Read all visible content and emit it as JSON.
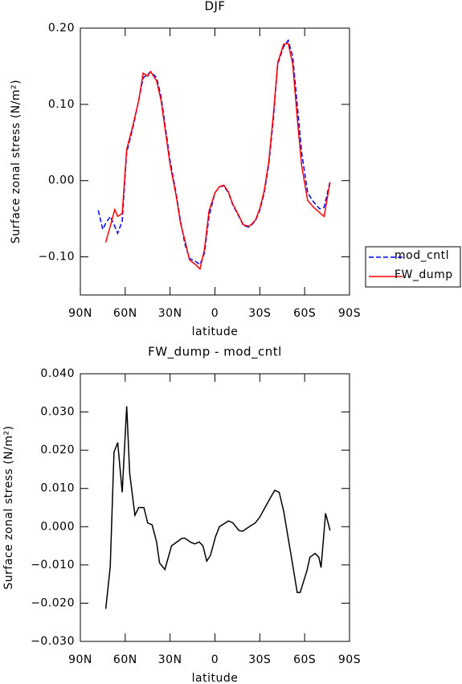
{
  "chart_data": [
    {
      "type": "line",
      "title": "DJF",
      "xlabel": "latitude",
      "ylabel": "Surface zonal stress (N/m²)",
      "x": [
        78,
        75,
        73,
        70,
        67,
        65,
        62,
        59,
        55,
        51,
        48,
        45,
        43,
        39,
        36,
        33,
        30,
        26,
        23,
        20,
        17,
        13,
        10,
        7,
        4,
        0,
        -3,
        -6,
        -9,
        -12,
        -16,
        -19,
        -23,
        -27,
        -30,
        -33,
        -36,
        -39,
        -42,
        -46,
        -49,
        -52,
        -55,
        -58,
        -62,
        -66,
        -70,
        -73,
        -77
      ],
      "series": [
        {
          "name": "mod_cntl",
          "color": "#0000ff",
          "dash": true,
          "values": [
            -0.039,
            -0.064,
            -0.056,
            -0.047,
            -0.06,
            -0.069,
            -0.053,
            0.037,
            0.068,
            0.105,
            0.135,
            0.139,
            0.143,
            0.135,
            0.11,
            0.068,
            0.026,
            -0.016,
            -0.053,
            -0.084,
            -0.102,
            -0.106,
            -0.11,
            -0.095,
            -0.047,
            -0.016,
            -0.008,
            -0.007,
            -0.016,
            -0.032,
            -0.047,
            -0.059,
            -0.061,
            -0.053,
            -0.039,
            -0.016,
            0.021,
            0.079,
            0.153,
            0.176,
            0.184,
            0.163,
            0.1,
            0.037,
            -0.016,
            -0.028,
            -0.037,
            -0.035,
            -0.001
          ]
        },
        {
          "name": "FW_dump",
          "color": "#ff0000",
          "dash": false,
          "values": [
            null,
            null,
            -0.081,
            -0.06,
            -0.038,
            -0.047,
            -0.043,
            0.041,
            0.071,
            0.105,
            0.141,
            0.137,
            0.143,
            0.131,
            0.105,
            0.063,
            0.021,
            -0.019,
            -0.056,
            -0.079,
            -0.104,
            -0.11,
            -0.116,
            -0.09,
            -0.04,
            -0.016,
            -0.008,
            -0.006,
            -0.015,
            -0.031,
            -0.046,
            -0.058,
            -0.06,
            -0.052,
            -0.037,
            -0.013,
            0.025,
            0.085,
            0.155,
            0.179,
            0.18,
            0.153,
            0.083,
            0.02,
            -0.026,
            -0.035,
            -0.042,
            -0.047,
            -0.002
          ]
        }
      ],
      "xlim": [
        90,
        -90
      ],
      "xticks": [
        {
          "value": 90,
          "label": "90N"
        },
        {
          "value": 60,
          "label": "60N"
        },
        {
          "value": 30,
          "label": "30N"
        },
        0,
        {
          "value": -30,
          "label": "30S"
        },
        {
          "value": -60,
          "label": "60S"
        },
        {
          "value": -90,
          "label": "90S"
        }
      ],
      "ylim": [
        -0.15,
        0.2
      ],
      "yticks": [
        {
          "value": -0.1,
          "label": "−0.10"
        },
        {
          "value": 0,
          "label": "0.00"
        },
        {
          "value": 0.1,
          "label": "0.10"
        },
        {
          "value": 0.2,
          "label": "0.20"
        }
      ],
      "legend": "outside right"
    },
    {
      "type": "line",
      "title": "FW_dump - mod_cntl",
      "xlabel": "latitude",
      "ylabel": "Surface zonal stress (N/m²)",
      "x": [
        73,
        70,
        67.5,
        65,
        62,
        59,
        57,
        53.5,
        51,
        47.5,
        45,
        42,
        39,
        37,
        33.5,
        29,
        22,
        20,
        16.5,
        13.5,
        10.5,
        8,
        5.5,
        3,
        -0.5,
        -3,
        -9,
        -12,
        -16,
        -18.5,
        -23,
        -27,
        -30,
        -33.5,
        -37,
        -40,
        -43,
        -46,
        -49,
        -52,
        -55,
        -57,
        -61.5,
        -63.5,
        -67,
        -69.5,
        -71,
        -74,
        -77
      ],
      "series": [
        {
          "name": null,
          "color": "#000000",
          "dash": false,
          "values": [
            -0.0215,
            -0.0105,
            0.0195,
            0.022,
            0.009,
            0.0315,
            0.014,
            0.003,
            0.005,
            0.005,
            0.001,
            0.0005,
            -0.004,
            -0.0095,
            -0.0112,
            -0.005,
            -0.003,
            -0.003,
            -0.004,
            -0.0045,
            -0.004,
            -0.005,
            -0.009,
            -0.0075,
            -0.0025,
            0,
            0.0015,
            0.001,
            -0.001,
            -0.0012,
            0,
            0.001,
            0.0025,
            0.005,
            0.0075,
            0.0095,
            0.009,
            0.004,
            -0.003,
            -0.01,
            -0.0172,
            -0.0172,
            -0.0115,
            -0.008,
            -0.007,
            -0.008,
            -0.0107,
            0.0035,
            -0.001
          ]
        }
      ],
      "xlim": [
        90,
        -90
      ],
      "xticks": [
        {
          "value": 90,
          "label": "90N"
        },
        {
          "value": 60,
          "label": "60N"
        },
        {
          "value": 30,
          "label": "30N"
        },
        0,
        {
          "value": -30,
          "label": "30S"
        },
        {
          "value": -60,
          "label": "60S"
        },
        {
          "value": -90,
          "label": "90S"
        }
      ],
      "ylim": [
        -0.03,
        0.04
      ],
      "yticks": [
        {
          "value": -0.03,
          "label": "−0.030"
        },
        {
          "value": -0.02,
          "label": "−0.020"
        },
        {
          "value": -0.01,
          "label": "−0.010"
        },
        {
          "value": 0,
          "label": "0.000"
        },
        {
          "value": 0.01,
          "label": "0.010"
        },
        {
          "value": 0.02,
          "label": "0.020"
        },
        {
          "value": 0.03,
          "label": "0.030"
        },
        {
          "value": 0.04,
          "label": "0.040"
        }
      ]
    }
  ]
}
